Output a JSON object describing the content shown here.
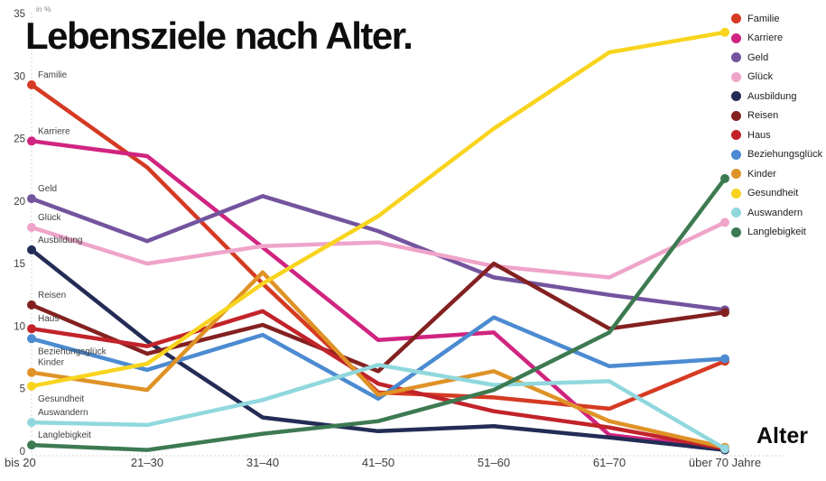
{
  "title": "Lebensziele nach Alter.",
  "unit_label": "in %",
  "x_axis_label": "Alter",
  "chart_data": {
    "type": "line",
    "categories": [
      "bis 20",
      "21–30",
      "31–40",
      "41–50",
      "51–60",
      "61–70",
      "über 70 Jahre"
    ],
    "y_ticks": [
      0,
      5,
      10,
      15,
      20,
      25,
      30,
      35
    ],
    "ylim": [
      0,
      35
    ],
    "grid": "dotted y-axis line and dotted zero baseline only",
    "legend_position": "top-right",
    "series_labels_at_line_start": true,
    "series": [
      {
        "name": "Familie",
        "color": "#d53a23",
        "values": [
          29.3,
          22.7,
          13.4,
          4.7,
          4.3,
          3.4,
          7.2
        ]
      },
      {
        "name": "Karriere",
        "color": "#d02480",
        "values": [
          24.8,
          23.6,
          16.3,
          8.9,
          9.5,
          1.3,
          0.2
        ]
      },
      {
        "name": "Geld",
        "color": "#73549e",
        "values": [
          20.2,
          16.8,
          20.4,
          17.6,
          13.9,
          12.5,
          11.3
        ]
      },
      {
        "name": "Glück",
        "color": "#efa4ca",
        "values": [
          17.9,
          15.0,
          16.4,
          16.7,
          14.8,
          13.9,
          18.3
        ]
      },
      {
        "name": "Ausbildung",
        "color": "#232c55",
        "values": [
          16.1,
          8.8,
          2.7,
          1.6,
          2.0,
          1.1,
          0.1
        ]
      },
      {
        "name": "Reisen",
        "color": "#832120",
        "values": [
          11.7,
          7.8,
          10.1,
          6.4,
          15.0,
          9.8,
          11.1
        ]
      },
      {
        "name": "Haus",
        "color": "#c2232a",
        "values": [
          9.8,
          8.4,
          11.2,
          5.4,
          3.2,
          1.9,
          0.2
        ]
      },
      {
        "name": "Beziehungsglück",
        "color": "#4c8bd1",
        "values": [
          9.0,
          6.5,
          9.3,
          4.2,
          10.7,
          6.8,
          7.4
        ]
      },
      {
        "name": "Kinder",
        "color": "#df9226",
        "values": [
          6.3,
          4.9,
          14.3,
          4.5,
          6.4,
          2.4,
          0.3
        ]
      },
      {
        "name": "Gesundheit",
        "color": "#f8d41e",
        "values": [
          5.2,
          7.0,
          13.4,
          18.8,
          25.8,
          31.9,
          33.5
        ]
      },
      {
        "name": "Auswandern",
        "color": "#90d8de",
        "values": [
          2.3,
          2.1,
          4.1,
          6.9,
          5.3,
          5.6,
          0.2
        ]
      },
      {
        "name": "Langlebigkeit",
        "color": "#3d7a52",
        "values": [
          0.5,
          0.1,
          1.4,
          2.4,
          4.9,
          9.5,
          21.8
        ]
      }
    ]
  }
}
